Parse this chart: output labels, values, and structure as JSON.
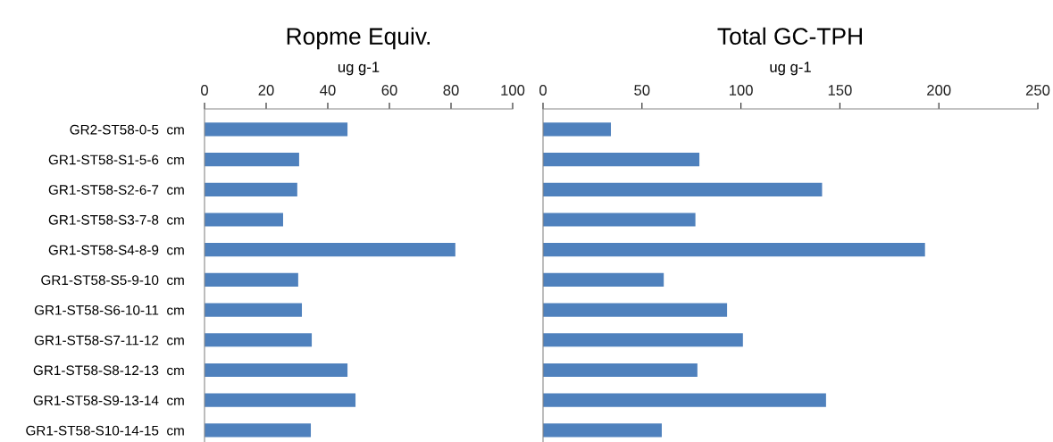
{
  "chart_data": [
    {
      "type": "bar",
      "orientation": "horizontal",
      "title": "Ropme Equiv.",
      "xlabel": "ug g-1",
      "categories": [
        "GR2-ST58-0-5  cm",
        "GR1-ST58-S1-5-6  cm",
        "GR1-ST58-S2-6-7  cm",
        "GR1-ST58-S3-7-8  cm",
        "GR1-ST58-S4-8-9  cm",
        "GR1-ST58-S5-9-10  cm",
        "GR1-ST58-S6-10-11  cm",
        "GR1-ST58-S7-11-12  cm",
        "GR1-ST58-S8-12-13  cm",
        "GR1-ST58-S9-13-14  cm",
        "GR1-ST58-S10-14-15  cm"
      ],
      "values": [
        46.4,
        30.7,
        30.1,
        25.5,
        81.4,
        30.4,
        31.6,
        34.8,
        46.4,
        49.0,
        34.5
      ],
      "color": "#4f81bd",
      "xlim": [
        0,
        100
      ],
      "xticks": [
        0,
        20,
        40,
        60,
        80,
        100
      ]
    },
    {
      "type": "bar",
      "orientation": "horizontal",
      "title": "Total GC-TPH",
      "xlabel": "ug g-1",
      "categories": [
        null,
        null,
        null,
        null,
        null,
        null,
        null,
        null,
        null,
        null,
        null
      ],
      "values": [
        34.3,
        79,
        141,
        77,
        193,
        61,
        93,
        101,
        78,
        143,
        60
      ],
      "color": "#4f81bd",
      "xlim": [
        0,
        250
      ],
      "xticks": [
        0,
        50,
        100,
        150,
        200,
        250
      ],
      "tick_labels": "x"
    }
  ]
}
